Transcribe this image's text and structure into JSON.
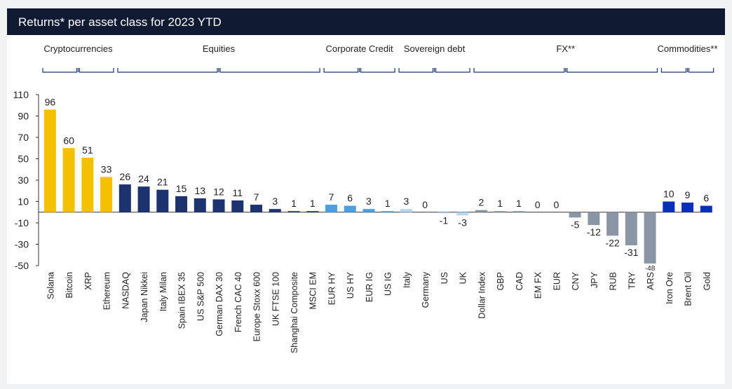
{
  "title": "Returns* per asset class for 2023 YTD",
  "colors": {
    "crypto": "#f5c000",
    "equities": "#1d3370",
    "credit": "#4d9fe0",
    "sovereign": "#b8d6f0",
    "fx": "#8a96a6",
    "commodities": "#0a2fb8"
  },
  "groups": [
    {
      "label": "Cryptocurrencies",
      "start": 0,
      "end": 3
    },
    {
      "label": "Equities",
      "start": 4,
      "end": 14
    },
    {
      "label": "Corporate Credit",
      "start": 15,
      "end": 18
    },
    {
      "label": "Sovereign debt",
      "start": 19,
      "end": 22
    },
    {
      "label": "FX**",
      "start": 23,
      "end": 32
    },
    {
      "label": "Commodities**",
      "start": 33,
      "end": 35
    }
  ],
  "chart_data": {
    "type": "bar",
    "title": "Returns* per asset class for 2023 YTD",
    "ylim": [
      -50,
      110
    ],
    "yticks": [
      110,
      90,
      70,
      50,
      30,
      10,
      -10,
      -30,
      -50
    ],
    "categories": [
      "Solana",
      "Bitcoin",
      "XRP",
      "Ethereum",
      "NASDAQ",
      "Japan Nikkei",
      "Italy Milan",
      "Spain IBEX 35",
      "US S&P 500",
      "German DAX 30",
      "French CAC 40",
      "Europe Stoxx 600",
      "UK FTSE 100",
      "Shanghai Composite",
      "MSCI EM",
      "EUR HY",
      "US HY",
      "EUR IG",
      "US IG",
      "Italy",
      "Germany",
      "US",
      "UK",
      "Dollar Index",
      "GBP",
      "CAD",
      "EM FX",
      "EUR",
      "CNY",
      "JPY",
      "RUB",
      "TRY",
      "ARS",
      "Iron Ore",
      "Brent Oil",
      "Gold"
    ],
    "values": [
      96,
      60,
      51,
      33,
      26,
      24,
      21,
      15,
      13,
      12,
      11,
      7,
      3,
      1,
      1,
      7,
      6,
      3,
      1,
      3,
      0,
      -1,
      -3,
      2,
      1,
      1,
      0,
      0,
      -5,
      -12,
      -22,
      -31,
      -48,
      10,
      9,
      6
    ],
    "groups": [
      "crypto",
      "crypto",
      "crypto",
      "crypto",
      "equities",
      "equities",
      "equities",
      "equities",
      "equities",
      "equities",
      "equities",
      "equities",
      "equities",
      "equities",
      "equities",
      "credit",
      "credit",
      "credit",
      "credit",
      "sovereign",
      "sovereign",
      "sovereign",
      "sovereign",
      "fx",
      "fx",
      "fx",
      "fx",
      "fx",
      "fx",
      "fx",
      "fx",
      "fx",
      "fx",
      "commodities",
      "commodities",
      "commodities"
    ],
    "data_labels": [
      "96",
      "60",
      "51",
      "33",
      "26",
      "24",
      "21",
      "15",
      "13",
      "12",
      "11",
      "7",
      "3",
      "1",
      "1",
      "7",
      "6",
      "3",
      "1",
      "3",
      "0",
      "-1",
      "-3",
      "2",
      "1",
      "1",
      "0",
      "0",
      "-5",
      "-12",
      "-22",
      "-31",
      "-48",
      "10",
      "9",
      "6"
    ]
  }
}
